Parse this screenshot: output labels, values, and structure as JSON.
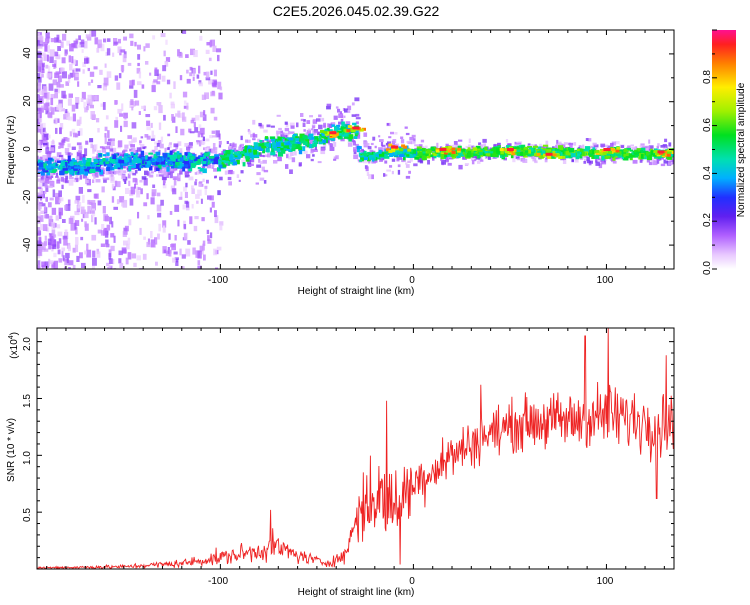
{
  "title": "C2E5.2026.045.02.39.G22",
  "chart_data": [
    {
      "type": "heatmap",
      "title": "C2E5.2026.045.02.39.G22",
      "xlabel": "Height of straight line (km)",
      "ylabel": "Frequency (Hz)",
      "xlim": [
        -195,
        135
      ],
      "ylim": [
        -50,
        50
      ],
      "xticks": [
        -100,
        0,
        100
      ],
      "xtick_labels": [
        "-100",
        "0",
        "100"
      ],
      "yticks": [
        -40,
        -20,
        0,
        20,
        40
      ],
      "ytick_labels": [
        "-40",
        "-20",
        "0",
        "20",
        "40"
      ],
      "colorbar": {
        "label": "Normalized spectral amplitude",
        "range": [
          0,
          1
        ],
        "ticks": [
          0.0,
          0.2,
          0.4,
          0.6,
          0.8
        ],
        "tick_labels": [
          "0.0",
          "0.2",
          "0.4",
          "0.6",
          "0.8"
        ]
      },
      "ridge": [
        {
          "x": -190,
          "f": -6
        },
        {
          "x": -175,
          "f": -7
        },
        {
          "x": -160,
          "f": -5
        },
        {
          "x": -140,
          "f": -4
        },
        {
          "x": -120,
          "f": -4
        },
        {
          "x": -100,
          "f": -4
        },
        {
          "x": -90,
          "f": -1
        },
        {
          "x": -75,
          "f": 2
        },
        {
          "x": -60,
          "f": 4
        },
        {
          "x": -50,
          "f": 6
        },
        {
          "x": -40,
          "f": 8
        },
        {
          "x": -30,
          "f": 9
        },
        {
          "x": -29,
          "f": -3
        },
        {
          "x": -20,
          "f": -2
        },
        {
          "x": -10,
          "f": 0
        },
        {
          "x": 0,
          "f": -1
        },
        {
          "x": 50,
          "f": 0
        },
        {
          "x": 100,
          "f": -1
        },
        {
          "x": 135,
          "f": -1
        }
      ],
      "peaks": [
        {
          "x": -42,
          "f": 7
        },
        {
          "x": -30,
          "f": 9
        },
        {
          "x": -10,
          "f": 1
        },
        {
          "x": 15,
          "f": 0
        },
        {
          "x": 50,
          "f": 0
        },
        {
          "x": 70,
          "f": -2
        },
        {
          "x": 100,
          "f": 0
        },
        {
          "x": 128,
          "f": -1
        }
      ]
    },
    {
      "type": "line",
      "title": "",
      "xlabel": "Height of straight line (km)",
      "ylabel": "SNR (10 * v/v)",
      "scale_label": "(x10",
      "scale_exp": "4",
      "scale_close": ")",
      "xlim": [
        -195,
        135
      ],
      "ylim": [
        0,
        2.12
      ],
      "xticks": [
        -100,
        0,
        100
      ],
      "xtick_labels": [
        "-100",
        "0",
        "100"
      ],
      "yticks": [
        0.5,
        1.0,
        1.5,
        2.0
      ],
      "ytick_labels": [
        "0.5",
        "1.0",
        "1.5",
        "2.0"
      ],
      "series": [
        {
          "name": "SNR",
          "color": "#ee2222",
          "envelope": [
            {
              "x": -195,
              "mean": 0.01,
              "noise": 0.01
            },
            {
              "x": -150,
              "mean": 0.02,
              "noise": 0.015
            },
            {
              "x": -120,
              "mean": 0.05,
              "noise": 0.03
            },
            {
              "x": -100,
              "mean": 0.1,
              "noise": 0.06
            },
            {
              "x": -80,
              "mean": 0.16,
              "noise": 0.08
            },
            {
              "x": -72,
              "mean": 0.2,
              "noise": 0.1
            },
            {
              "x": -60,
              "mean": 0.12,
              "noise": 0.06
            },
            {
              "x": -45,
              "mean": 0.05,
              "noise": 0.03
            },
            {
              "x": -35,
              "mean": 0.12,
              "noise": 0.06
            },
            {
              "x": -30,
              "mean": 0.45,
              "noise": 0.25
            },
            {
              "x": -20,
              "mean": 0.65,
              "noise": 0.3
            },
            {
              "x": -10,
              "mean": 0.55,
              "noise": 0.3
            },
            {
              "x": 0,
              "mean": 0.75,
              "noise": 0.2
            },
            {
              "x": 20,
              "mean": 1.0,
              "noise": 0.18
            },
            {
              "x": 40,
              "mean": 1.2,
              "noise": 0.18
            },
            {
              "x": 60,
              "mean": 1.3,
              "noise": 0.2
            },
            {
              "x": 80,
              "mean": 1.3,
              "noise": 0.22
            },
            {
              "x": 100,
              "mean": 1.35,
              "noise": 0.25
            },
            {
              "x": 120,
              "mean": 1.3,
              "noise": 0.25
            },
            {
              "x": 135,
              "mean": 1.3,
              "noise": 0.2
            }
          ],
          "spikes": [
            {
              "x": 101,
              "y": 2.12
            },
            {
              "x": 89,
              "y": 2.05
            },
            {
              "x": 131,
              "y": 1.88
            },
            {
              "x": 126,
              "y": 0.62
            },
            {
              "x": 128,
              "y": 0.98
            },
            {
              "x": -74,
              "y": 0.52
            },
            {
              "x": -26,
              "y": 0.85
            },
            {
              "x": -14,
              "y": 1.48
            },
            {
              "x": -7,
              "y": 0.04
            },
            {
              "x": 35,
              "y": 1.62
            }
          ]
        }
      ]
    }
  ]
}
